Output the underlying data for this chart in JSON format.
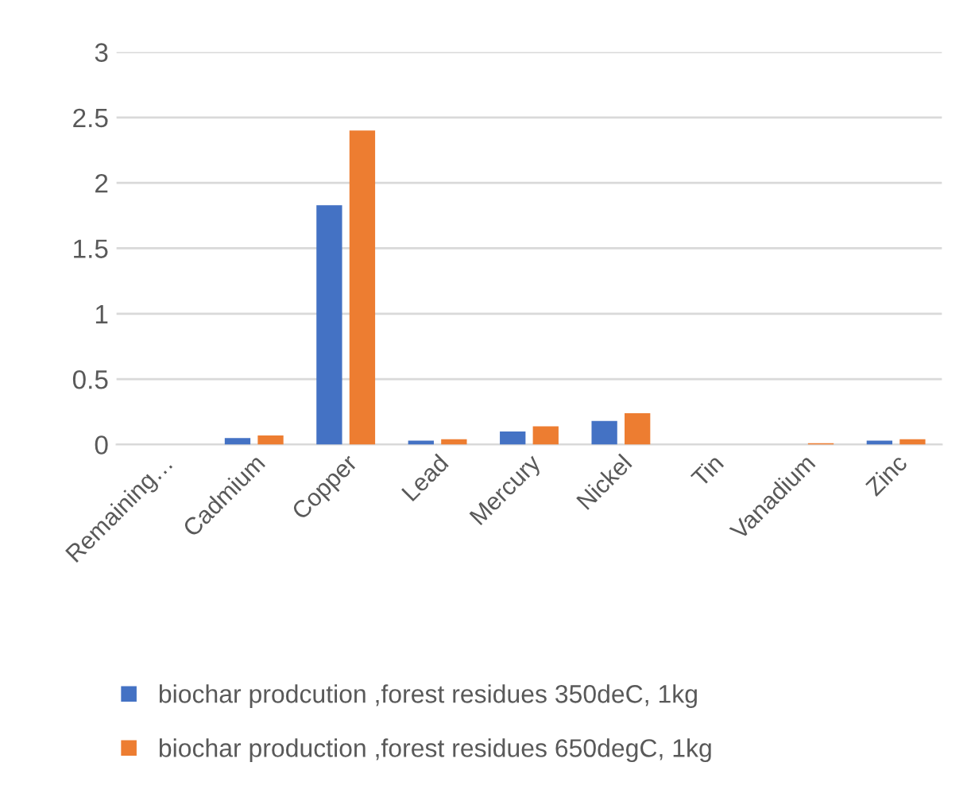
{
  "chart_data": {
    "type": "bar",
    "categories": [
      "Remaining…",
      "Cadmium",
      "Copper",
      "Lead",
      "Mercury",
      "Nickel",
      "Tin",
      "Vanadium",
      "Zinc"
    ],
    "series": [
      {
        "name": "biochar prodcution ,forest residues 350deC, 1kg",
        "color": "#4472c4",
        "values": [
          0,
          0.05,
          1.83,
          0.03,
          0.1,
          0.18,
          0,
          0,
          0.03
        ]
      },
      {
        "name": "biochar production ,forest residues 650degC, 1kg",
        "color": "#ed7d31",
        "values": [
          0,
          0.07,
          2.4,
          0.04,
          0.14,
          0.24,
          0,
          0.01,
          0.04
        ]
      }
    ],
    "ylim": [
      0,
      3
    ],
    "yticks": [
      0,
      0.5,
      1,
      1.5,
      2,
      2.5,
      3
    ],
    "grid": "y",
    "legend": "bottom"
  }
}
